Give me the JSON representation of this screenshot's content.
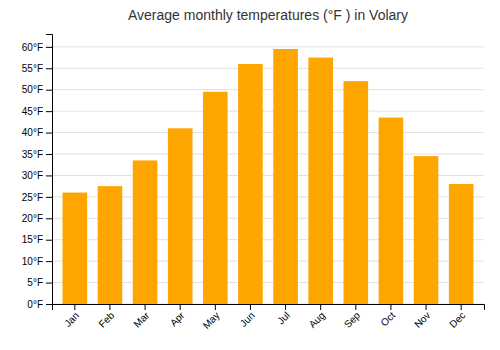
{
  "chart_data": {
    "type": "bar",
    "title": "Average monthly temperatures (°F ) in Volary",
    "categories": [
      "Jan",
      "Feb",
      "Mar",
      "Apr",
      "May",
      "Jun",
      "Jul",
      "Aug",
      "Sep",
      "Oct",
      "Nov",
      "Dec"
    ],
    "values": [
      26,
      27.5,
      33.5,
      41,
      49.5,
      56,
      59.5,
      57.5,
      52,
      43.5,
      34.5,
      28
    ],
    "color": "#FFA500",
    "ylim": [
      0,
      63
    ],
    "yticks": [
      {
        "value": 0,
        "label": "0°F"
      },
      {
        "value": 5,
        "label": "5°F"
      },
      {
        "value": 10,
        "label": "10°F"
      },
      {
        "value": 15,
        "label": "15°F"
      },
      {
        "value": 20,
        "label": "20°F"
      },
      {
        "value": 25,
        "label": "25°F"
      },
      {
        "value": 30,
        "label": "30°F"
      },
      {
        "value": 35,
        "label": "35°F"
      },
      {
        "value": 40,
        "label": "40°F"
      },
      {
        "value": 45,
        "label": "45°F"
      },
      {
        "value": 50,
        "label": "50°F"
      },
      {
        "value": 55,
        "label": "55°F"
      },
      {
        "value": 60,
        "label": "60°F"
      }
    ],
    "grid": true
  }
}
